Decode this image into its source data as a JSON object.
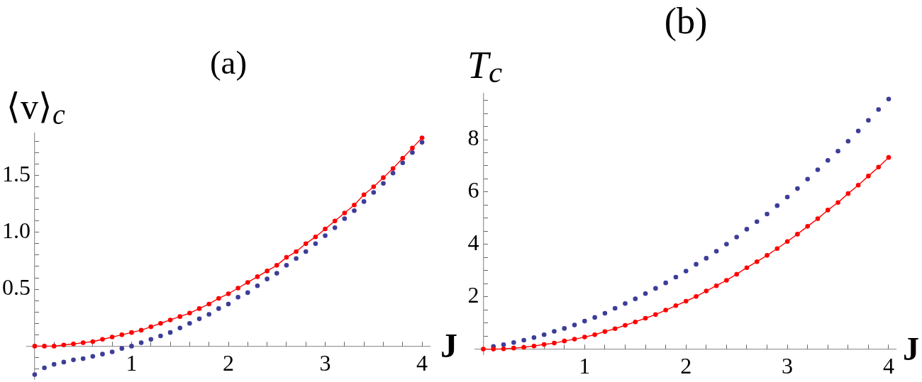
{
  "chart_data": [
    {
      "type": "line",
      "title": "(a)",
      "xlabel": "J",
      "ylabel": "⟨v⟩$_{c}$",
      "marker": "circle",
      "x": [
        0,
        0.1,
        0.2,
        0.3,
        0.4,
        0.5,
        0.6,
        0.7,
        0.8,
        0.9,
        1,
        1.1,
        1.2,
        1.3,
        1.4,
        1.5,
        1.6,
        1.7,
        1.8,
        1.9,
        2,
        2.1,
        2.2,
        2.3,
        2.4,
        2.5,
        2.6,
        2.7,
        2.8,
        2.9,
        3,
        3.1,
        3.2,
        3.3,
        3.4,
        3.5,
        3.6,
        3.7,
        3.8,
        3.9,
        4
      ],
      "series": [
        {
          "type": "line",
          "color": "#ff0000",
          "values": [
            0,
            0,
            0,
            0.01,
            0.02,
            0.03,
            0.04,
            0.06,
            0.08,
            0.1,
            0.12,
            0.14,
            0.17,
            0.2,
            0.23,
            0.26,
            0.29,
            0.33,
            0.37,
            0.42,
            0.46,
            0.51,
            0.56,
            0.61,
            0.66,
            0.71,
            0.78,
            0.83,
            0.9,
            0.96,
            1.03,
            1.1,
            1.17,
            1.24,
            1.33,
            1.4,
            1.48,
            1.56,
            1.65,
            1.74,
            1.83
          ]
        },
        {
          "type": "scatter",
          "color": "#3d3d99",
          "values": [
            -0.25,
            -0.19,
            -0.16,
            -0.14,
            -0.12,
            -0.11,
            -0.09,
            -0.07,
            -0.05,
            -0.02,
            0,
            0.03,
            0.06,
            0.09,
            0.12,
            0.16,
            0.2,
            0.24,
            0.28,
            0.33,
            0.37,
            0.43,
            0.47,
            0.53,
            0.59,
            0.64,
            0.71,
            0.77,
            0.83,
            0.9,
            0.97,
            1.04,
            1.12,
            1.19,
            1.27,
            1.35,
            1.43,
            1.52,
            1.61,
            1.7,
            1.79
          ]
        }
      ],
      "xlim": [
        -0.08,
        4.08
      ],
      "ylim": [
        -0.29,
        1.87
      ],
      "xticks": [
        {
          "value": 0.2,
          "label": null
        },
        {
          "value": 0.4,
          "label": null
        },
        {
          "value": 0.6,
          "label": null
        },
        {
          "value": 0.8,
          "label": null
        },
        1,
        {
          "value": 1.2,
          "label": null
        },
        {
          "value": 1.4,
          "label": null
        },
        {
          "value": 1.6,
          "label": null
        },
        {
          "value": 1.8,
          "label": null
        },
        2,
        {
          "value": 2.2,
          "label": null
        },
        {
          "value": 2.4,
          "label": null
        },
        {
          "value": 2.6,
          "label": null
        },
        {
          "value": 2.8,
          "label": null
        },
        3,
        {
          "value": 3.2,
          "label": null
        },
        {
          "value": 3.4,
          "label": null
        },
        {
          "value": 3.6,
          "label": null
        },
        {
          "value": 3.8,
          "label": null
        },
        4
      ],
      "yticks": [
        {
          "value": -0.2,
          "label": null
        },
        {
          "value": -0.1,
          "label": null
        },
        {
          "value": 0.1,
          "label": null
        },
        {
          "value": 0.2,
          "label": null
        },
        {
          "value": 0.3,
          "label": null
        },
        {
          "value": 0.4,
          "label": null
        },
        0.5,
        {
          "value": 0.6,
          "label": null
        },
        {
          "value": 0.7,
          "label": null
        },
        {
          "value": 0.8,
          "label": null
        },
        {
          "value": 0.9,
          "label": null
        },
        {
          "value": 1,
          "label": "1.0"
        },
        {
          "value": 1.1,
          "label": null
        },
        {
          "value": 1.2,
          "label": null
        },
        {
          "value": 1.3,
          "label": null
        },
        {
          "value": 1.4,
          "label": null
        },
        1.5,
        {
          "value": 1.6,
          "label": null
        },
        {
          "value": 1.7,
          "label": null
        },
        {
          "value": 1.8,
          "label": null
        }
      ]
    },
    {
      "type": "line",
      "title": "(b)",
      "xlabel": "J",
      "ylabel": "T$_{c}$",
      "marker": "circle",
      "x": [
        0,
        0.1,
        0.2,
        0.3,
        0.4,
        0.5,
        0.6,
        0.7,
        0.8,
        0.9,
        1,
        1.1,
        1.2,
        1.3,
        1.4,
        1.5,
        1.6,
        1.7,
        1.8,
        1.9,
        2,
        2.1,
        2.2,
        2.3,
        2.4,
        2.5,
        2.6,
        2.7,
        2.8,
        2.9,
        3,
        3.1,
        3.2,
        3.3,
        3.4,
        3.5,
        3.6,
        3.7,
        3.8,
        3.9,
        4
      ],
      "series": [
        {
          "type": "line",
          "color": "#ff0000",
          "values": [
            0,
            0,
            0.01,
            0.04,
            0.07,
            0.12,
            0.18,
            0.23,
            0.31,
            0.38,
            0.46,
            0.55,
            0.67,
            0.78,
            0.91,
            1.04,
            1.18,
            1.32,
            1.49,
            1.66,
            1.83,
            2.01,
            2.22,
            2.42,
            2.63,
            2.86,
            3.11,
            3.34,
            3.58,
            3.84,
            4.11,
            4.39,
            4.69,
            4.98,
            5.31,
            5.6,
            5.94,
            6.26,
            6.61,
            6.95,
            7.32
          ]
        },
        {
          "type": "scatter",
          "color": "#3d3d99",
          "values": [
            null,
            0.1,
            0.17,
            0.25,
            0.34,
            0.44,
            0.55,
            0.68,
            0.79,
            0.92,
            1.07,
            1.21,
            1.37,
            1.56,
            1.74,
            1.92,
            2.12,
            2.32,
            2.53,
            2.75,
            2.98,
            3.24,
            3.47,
            3.74,
            4.01,
            4.28,
            4.58,
            4.87,
            5.16,
            5.48,
            5.81,
            6.13,
            6.49,
            6.85,
            7.21,
            7.56,
            7.94,
            8.33,
            8.74,
            9.15,
            9.55
          ]
        }
      ],
      "xlim": [
        -0.08,
        4.07
      ],
      "ylim": [
        -0.2,
        9.76
      ],
      "xticks": [
        {
          "value": 0.2,
          "label": null
        },
        {
          "value": 0.4,
          "label": null
        },
        {
          "value": 0.6,
          "label": null
        },
        {
          "value": 0.8,
          "label": null
        },
        1,
        {
          "value": 1.2,
          "label": null
        },
        {
          "value": 1.4,
          "label": null
        },
        {
          "value": 1.6,
          "label": null
        },
        {
          "value": 1.8,
          "label": null
        },
        2,
        {
          "value": 2.2,
          "label": null
        },
        {
          "value": 2.4,
          "label": null
        },
        {
          "value": 2.6,
          "label": null
        },
        {
          "value": 2.8,
          "label": null
        },
        3,
        {
          "value": 3.2,
          "label": null
        },
        {
          "value": 3.4,
          "label": null
        },
        {
          "value": 3.6,
          "label": null
        },
        {
          "value": 3.8,
          "label": null
        },
        4
      ],
      "yticks": [
        {
          "value": 0.5,
          "label": null
        },
        {
          "value": 1,
          "label": null
        },
        {
          "value": 1.5,
          "label": null
        },
        2,
        {
          "value": 2.5,
          "label": null
        },
        {
          "value": 3,
          "label": null
        },
        {
          "value": 3.5,
          "label": null
        },
        4,
        {
          "value": 4.5,
          "label": null
        },
        {
          "value": 5,
          "label": null
        },
        {
          "value": 5.5,
          "label": null
        },
        6,
        {
          "value": 6.5,
          "label": null
        },
        {
          "value": 7,
          "label": null
        },
        {
          "value": 7.5,
          "label": null
        },
        8,
        {
          "value": 8.5,
          "label": null
        },
        {
          "value": 9,
          "label": null
        },
        {
          "value": 9.5,
          "label": null
        }
      ]
    }
  ]
}
